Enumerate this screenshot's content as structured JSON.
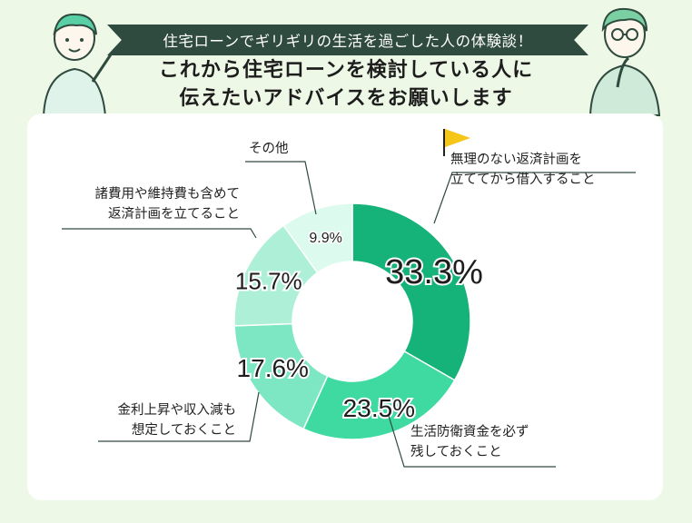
{
  "header": {
    "banner_text": "住宅ローンでギリギリの生活を過ごした人の体験談！",
    "headline_line1": "これから住宅ローンを検討している人に",
    "headline_line2": "伝えたいアドバイスをお願いします"
  },
  "colors": {
    "background": "#eef8e6",
    "banner": "#2f4a3e",
    "slices": [
      "#15b27a",
      "#3fd9a2",
      "#7de7c3",
      "#aef0d7",
      "#dcfaee"
    ]
  },
  "chart_data": {
    "type": "pie",
    "donut": true,
    "title": "",
    "slices": [
      {
        "label_lines": [
          "無理のない返済計画を",
          "立ててから借入すること"
        ],
        "value": 33.3,
        "display": "33.3%"
      },
      {
        "label_lines": [
          "生活防衛資金を必ず",
          "残しておくこと"
        ],
        "value": 23.5,
        "display": "23.5%"
      },
      {
        "label_lines": [
          "金利上昇や収入減も",
          "想定しておくこと"
        ],
        "value": 17.6,
        "display": "17.6%"
      },
      {
        "label_lines": [
          "諸費用や維持費も含めて",
          "返済計画を立てること"
        ],
        "value": 15.7,
        "display": "15.7%"
      },
      {
        "label_lines": [
          "その他"
        ],
        "value": 9.9,
        "display": "9.9%"
      }
    ]
  }
}
